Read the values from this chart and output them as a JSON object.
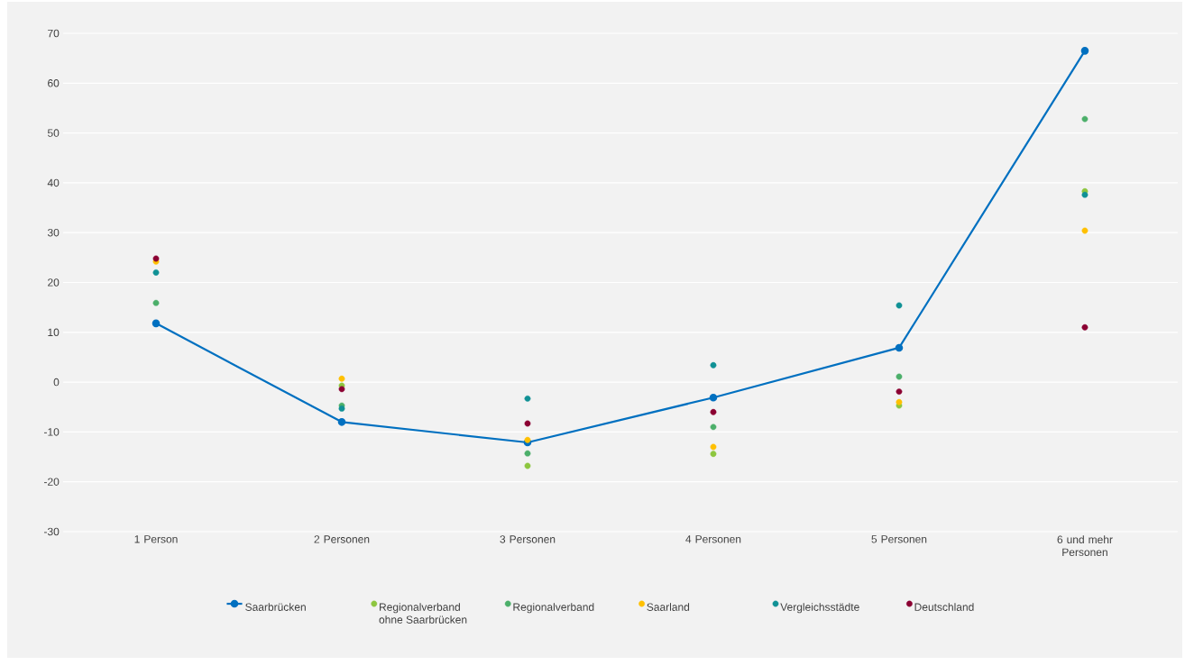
{
  "chart_data": {
    "type": "scatter",
    "categories": [
      "1 Person",
      "2 Personen",
      "3 Personen",
      "4 Personen",
      "5 Personen",
      "6 und mehr Personen"
    ],
    "series": [
      {
        "name": "Saarbrücken",
        "type": "line",
        "color": "#0070c0",
        "values": [
          11.8,
          -8,
          -12.1,
          -3.1,
          6.9,
          66.5
        ]
      },
      {
        "name": "Regionalverband ohne Saarbrücken",
        "color": "#8dc63f",
        "values": [
          null,
          -0.7,
          -16.8,
          -14.4,
          -4.7,
          38.3
        ]
      },
      {
        "name": "Regionalverband",
        "color": "#4caf6a",
        "values": [
          15.9,
          -4.7,
          -14.3,
          -9,
          1.1,
          52.8
        ]
      },
      {
        "name": "Saarland",
        "color": "#ffc000",
        "values": [
          24.2,
          0.7,
          -11.6,
          -13,
          -4,
          30.4
        ]
      },
      {
        "name": "Vergleichsstädte",
        "color": "#109195",
        "values": [
          22,
          -5.3,
          -3.3,
          3.4,
          15.4,
          37.6
        ]
      },
      {
        "name": "Deutschland",
        "color": "#8b0032",
        "values": [
          24.8,
          -1.4,
          -8.3,
          -6,
          -1.9,
          11
        ]
      }
    ],
    "ylim": [
      -30,
      70
    ],
    "yticks": [
      -30,
      -20,
      -10,
      0,
      10,
      20,
      30,
      40,
      50,
      60,
      70
    ],
    "grid": "y",
    "legend": "bottom",
    "marker": "circle",
    "line_style": "solid"
  }
}
